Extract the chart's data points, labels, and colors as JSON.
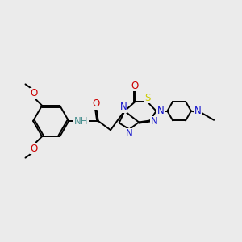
{
  "bg_color": "#ebebeb",
  "bond_color": "#000000",
  "atom_colors": {
    "N": "#1414cc",
    "O": "#cc0000",
    "S": "#cccc00",
    "NH": "#4a9090",
    "C": "#000000"
  },
  "line_width": 1.4,
  "font_size": 8.5
}
